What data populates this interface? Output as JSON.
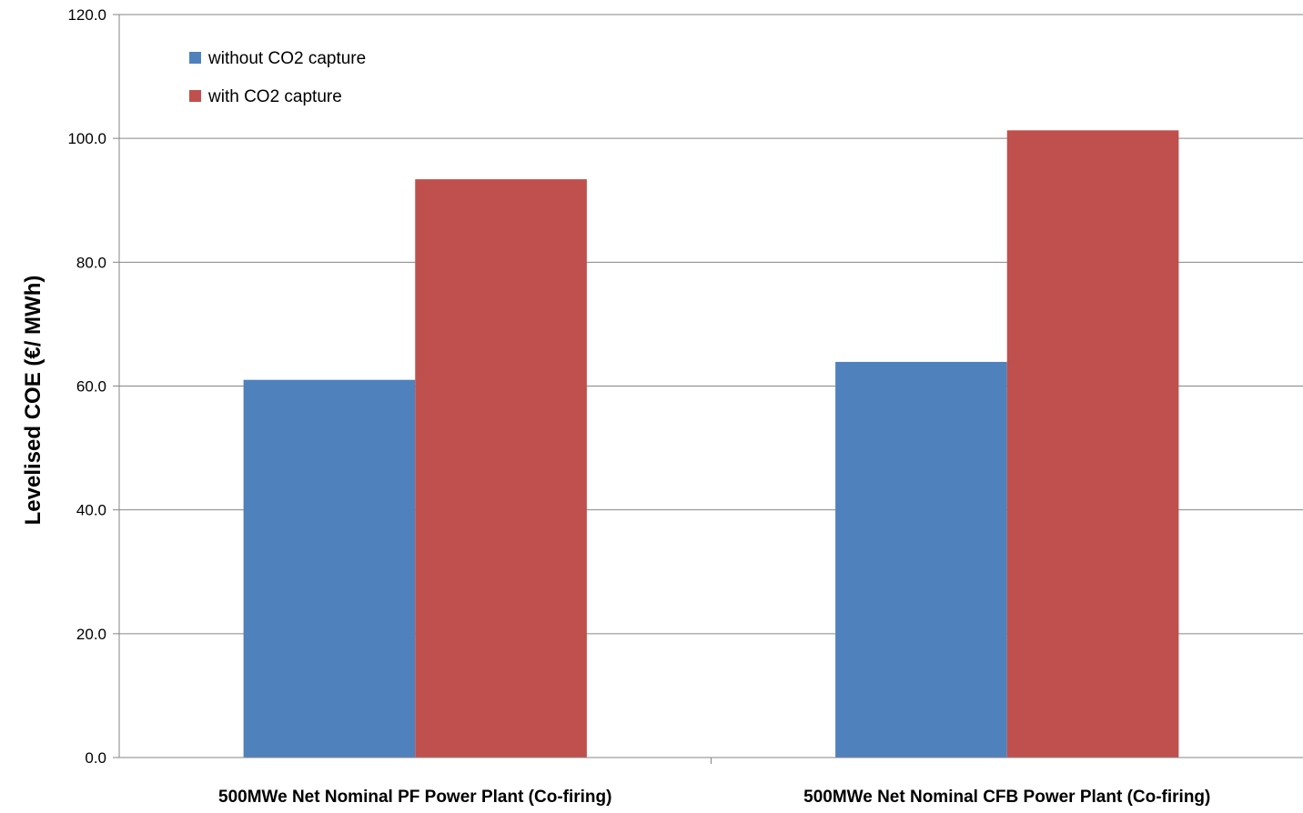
{
  "chart_data": {
    "type": "bar",
    "title": "",
    "xlabel": "",
    "ylabel": "Levelised COE (€/ MWh)",
    "categories": [
      "500MWe Net Nominal PF Power Plant (Co-firing)",
      "500MWe Net Nominal CFB Power Plant (Co-firing)"
    ],
    "series": [
      {
        "name": "without CO2 capture",
        "color": "#4F81BD",
        "values": [
          61.0,
          63.9
        ]
      },
      {
        "name": "with CO2 capture",
        "color": "#C0504D",
        "values": [
          93.4,
          101.3
        ]
      }
    ],
    "ylim": [
      0,
      120
    ],
    "yticks": [
      "0.0",
      "20.0",
      "40.0",
      "60.0",
      "80.0",
      "100.0",
      "120.0"
    ],
    "grid": true,
    "legend_position": "top-left"
  }
}
